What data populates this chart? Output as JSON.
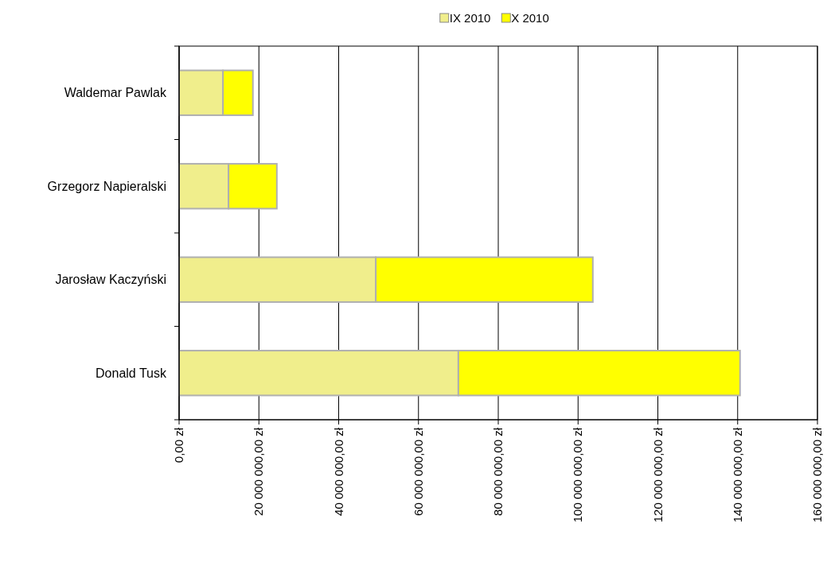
{
  "chart_data": {
    "type": "bar",
    "orientation": "horizontal",
    "stacked": true,
    "categories": [
      "Waldemar Pawlak",
      "Grzegorz Napieralski",
      "Jarosław Kaczyński",
      "Donald Tusk"
    ],
    "series": [
      {
        "name": "IX 2010",
        "color": "#f0ee8c",
        "values": [
          11000000,
          12400000,
          49300000,
          70000000
        ]
      },
      {
        "name": "X 2010",
        "color": "#ffff00",
        "values": [
          7500000,
          12100000,
          54400000,
          70600000
        ]
      }
    ],
    "xlim": [
      0,
      160000000
    ],
    "xticks": [
      {
        "value": 0,
        "label": "0,00 zł"
      },
      {
        "value": 20000000,
        "label": "20 000 000,00 zł"
      },
      {
        "value": 40000000,
        "label": "40 000 000,00 zł"
      },
      {
        "value": 60000000,
        "label": "60 000 000,00 zł"
      },
      {
        "value": 80000000,
        "label": "80 000 000,00 zł"
      },
      {
        "value": 100000000,
        "label": "100 000 000,00 zł"
      },
      {
        "value": 120000000,
        "label": "120 000 000,00 zł"
      },
      {
        "value": 140000000,
        "label": "140 000 000,00 zł"
      },
      {
        "value": 160000000,
        "label": "160 000 000,00 zł"
      }
    ],
    "grid": "x",
    "legend": "top"
  }
}
